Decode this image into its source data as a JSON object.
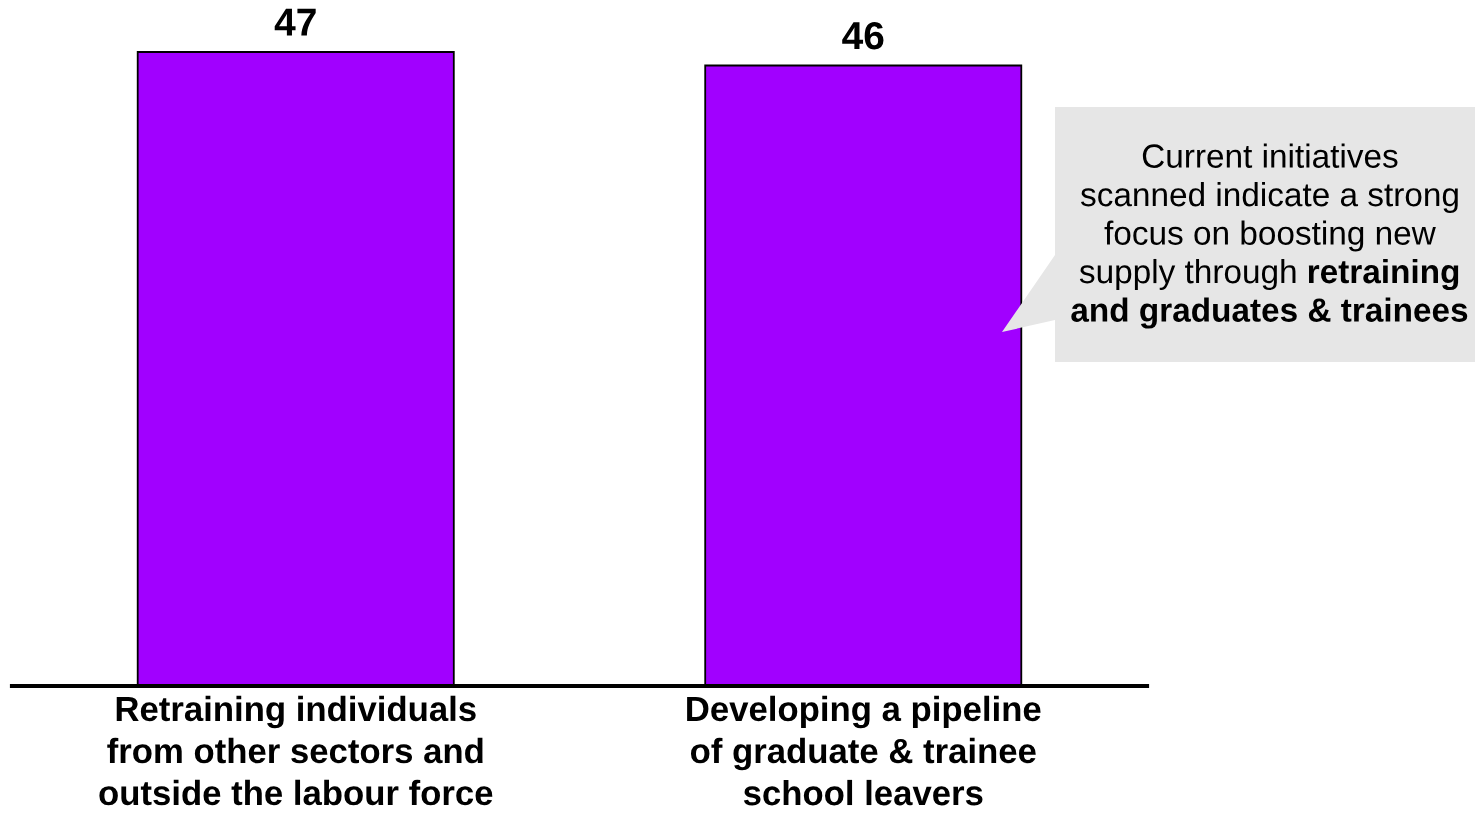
{
  "chart_data": {
    "type": "bar",
    "categories": [
      "Retraining individuals\nfrom other sectors and\noutside the labour force",
      "Developing a pipeline\nof graduate & trainee\nschool leavers"
    ],
    "values": [
      47,
      46
    ],
    "color": "#a100ff",
    "data_labels": true,
    "tick_labels": "x",
    "annotations": [
      "Current initiatives\nscanned indicate a strong\nfocus on boosting new",
      "supply through",
      "retraining",
      "and graduates & trainees"
    ]
  }
}
